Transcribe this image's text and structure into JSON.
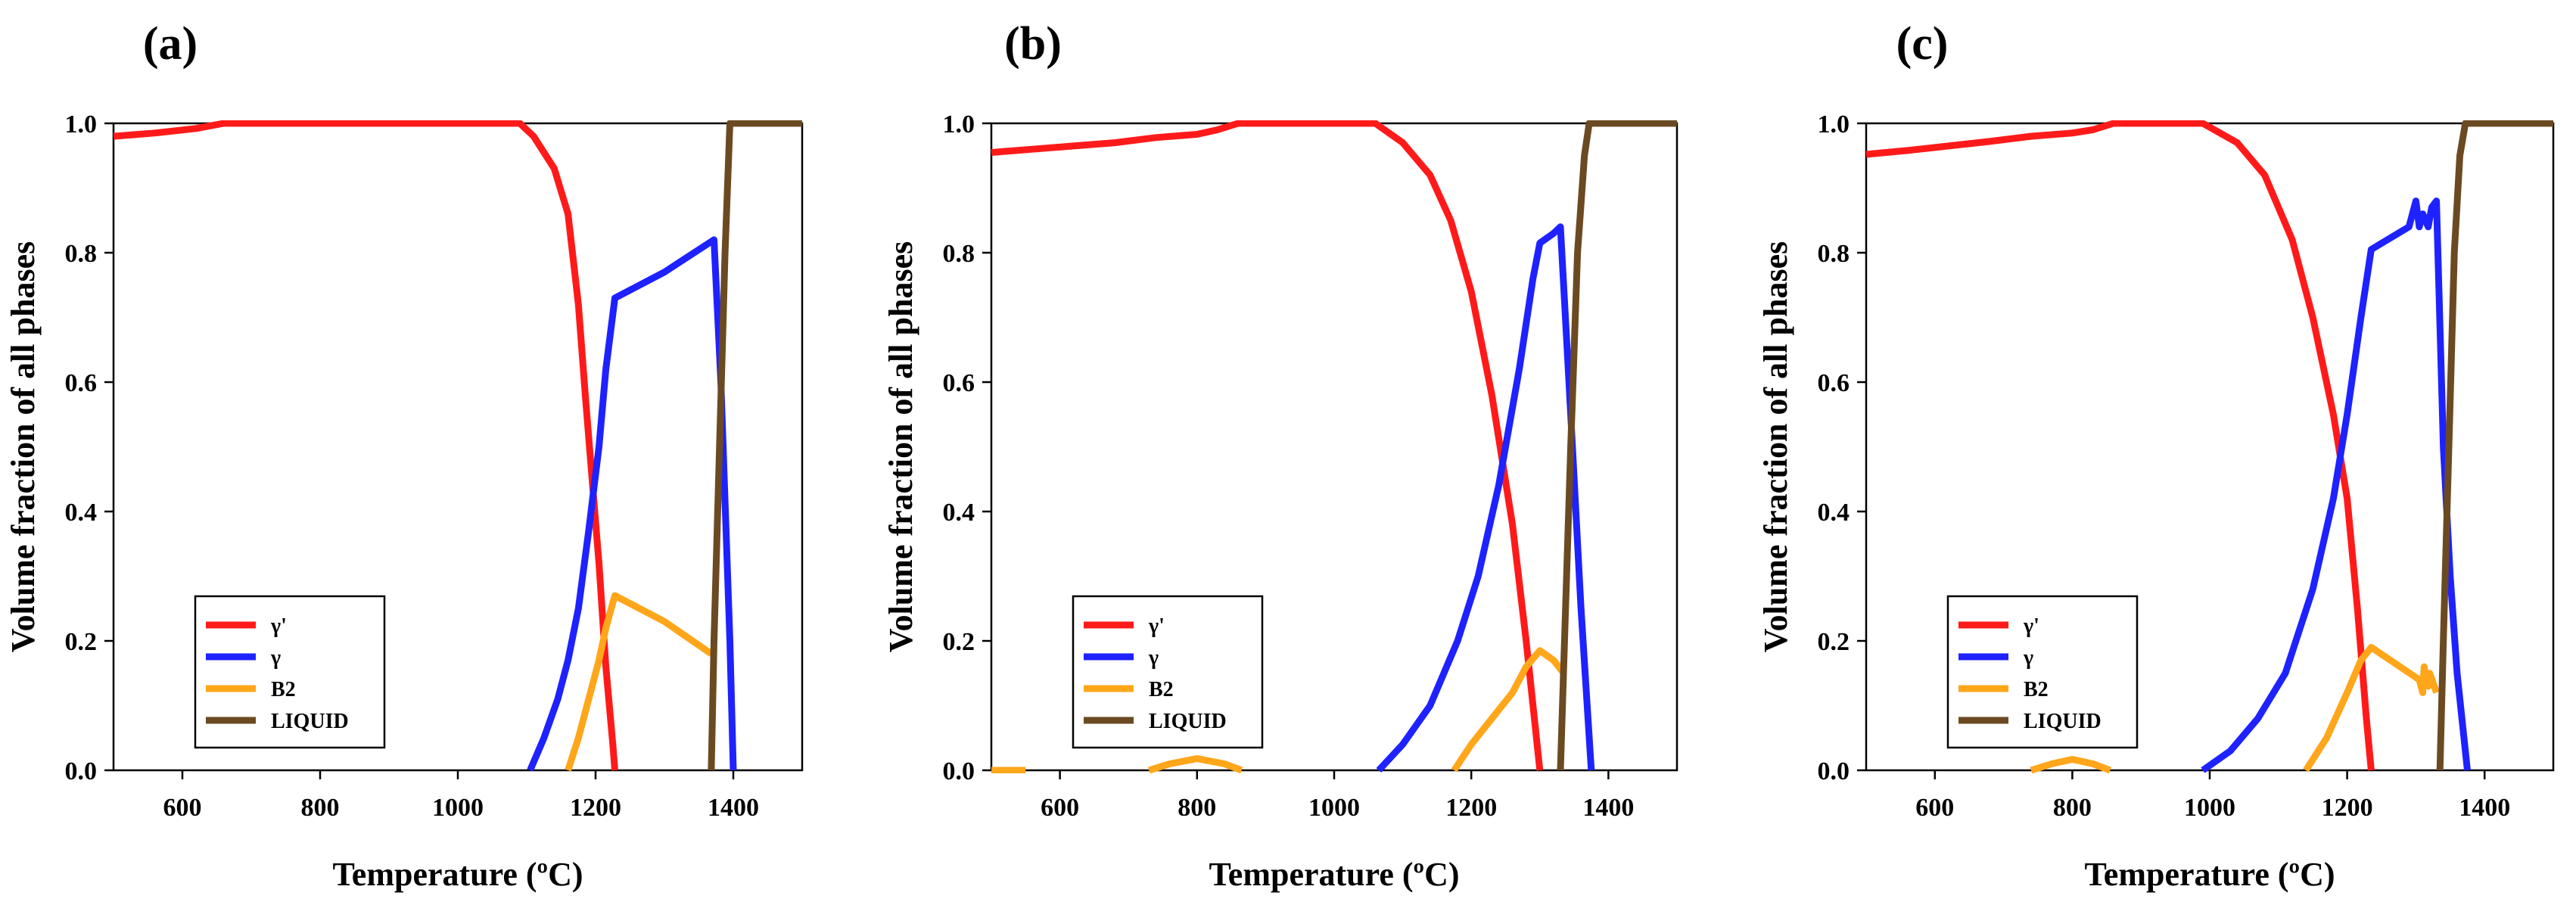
{
  "figure": {
    "panel_labels": [
      "(a)",
      "(b)",
      "(c)"
    ]
  },
  "chart_data": [
    {
      "type": "line",
      "panel": "(a)",
      "xlabel": "Temperature (ºC)",
      "ylabel": "Volume fraction of all phases",
      "xlim": [
        500,
        1500
      ],
      "ylim": [
        0,
        1
      ],
      "xticks": [
        600,
        800,
        1000,
        1200,
        1400
      ],
      "yticks": [
        0.0,
        0.2,
        0.4,
        0.6,
        0.8,
        1.0
      ],
      "xtick_labels": [
        "600",
        "800",
        "1000",
        "1200",
        "1400"
      ],
      "ytick_labels": [
        "0.0",
        "0.2",
        "0.4",
        "0.6",
        "0.8",
        "1.0"
      ],
      "legend_position": "bottom-left",
      "series": [
        {
          "name": "γ'",
          "color": "#ff1a1a",
          "x": [
            500,
            560,
            620,
            660,
            700,
            800,
            900,
            1000,
            1050,
            1090,
            1110,
            1140,
            1160,
            1175,
            1185,
            1195,
            1205,
            1215,
            1225,
            1228
          ],
          "y": [
            0.98,
            0.985,
            0.992,
            1.0,
            1.0,
            1.0,
            1.0,
            1.0,
            1.0,
            1.0,
            0.98,
            0.93,
            0.86,
            0.72,
            0.58,
            0.45,
            0.32,
            0.16,
            0.04,
            0.0
          ]
        },
        {
          "name": "γ",
          "color": "#1e22ff",
          "x": [
            1105,
            1125,
            1145,
            1160,
            1175,
            1190,
            1205,
            1215,
            1228,
            1300,
            1372,
            1382,
            1395,
            1400
          ],
          "y": [
            0.0,
            0.05,
            0.11,
            0.17,
            0.25,
            0.37,
            0.5,
            0.62,
            0.73,
            0.77,
            0.82,
            0.6,
            0.2,
            0.0
          ]
        },
        {
          "name": "B2",
          "color": "#ffa61a",
          "x": [
            1160,
            1175,
            1190,
            1205,
            1215,
            1228,
            1300,
            1368
          ],
          "y": [
            0.0,
            0.05,
            0.11,
            0.17,
            0.22,
            0.27,
            0.23,
            0.18
          ]
        },
        {
          "name": "LIQUID",
          "color": "#6b4a22",
          "x": [
            1368,
            1372,
            1380,
            1388,
            1395,
            1500
          ],
          "y": [
            0.0,
            0.2,
            0.5,
            0.8,
            1.0,
            1.0
          ]
        }
      ]
    },
    {
      "type": "line",
      "panel": "(b)",
      "xlabel": "Temperature (ºC)",
      "ylabel": "Volume fraction of all phases",
      "xlim": [
        500,
        1500
      ],
      "ylim": [
        0,
        1
      ],
      "xticks": [
        600,
        800,
        1000,
        1200,
        1400
      ],
      "yticks": [
        0.0,
        0.2,
        0.4,
        0.6,
        0.8,
        1.0
      ],
      "xtick_labels": [
        "600",
        "800",
        "1000",
        "1200",
        "1400"
      ],
      "ytick_labels": [
        "0.0",
        "0.2",
        "0.4",
        "0.6",
        "0.8",
        "1.0"
      ],
      "legend_position": "bottom-left",
      "series": [
        {
          "name": "γ'",
          "color": "#ff1a1a",
          "x": [
            500,
            560,
            620,
            680,
            740,
            800,
            830,
            860,
            900,
            1000,
            1060,
            1100,
            1140,
            1170,
            1200,
            1230,
            1260,
            1280,
            1300
          ],
          "y": [
            0.955,
            0.96,
            0.965,
            0.97,
            0.978,
            0.983,
            0.99,
            1.0,
            1.0,
            1.0,
            1.0,
            0.97,
            0.92,
            0.85,
            0.74,
            0.58,
            0.38,
            0.2,
            0.0
          ]
        },
        {
          "name": "γ",
          "color": "#1e22ff",
          "x": [
            1065,
            1100,
            1140,
            1180,
            1210,
            1240,
            1270,
            1290,
            1300,
            1320,
            1330,
            1345,
            1360,
            1375
          ],
          "y": [
            0.0,
            0.04,
            0.1,
            0.2,
            0.3,
            0.44,
            0.62,
            0.76,
            0.815,
            0.83,
            0.84,
            0.55,
            0.25,
            0.0
          ]
        },
        {
          "name": "B2",
          "color": "#ffa61a",
          "x": [
            1175,
            1200,
            1230,
            1260,
            1280,
            1300,
            1320,
            1335
          ],
          "y": [
            0.0,
            0.04,
            0.08,
            0.12,
            0.16,
            0.185,
            0.17,
            0.15
          ]
        },
        {
          "name": "B2 (low-T)",
          "color": "#ffa61a",
          "x": [
            500,
            550
          ],
          "y": [
            0.0,
            0.0
          ]
        },
        {
          "name": "B2 (800)",
          "color": "#ffa61a",
          "x": [
            730,
            760,
            800,
            840,
            865
          ],
          "y": [
            0.0,
            0.01,
            0.018,
            0.01,
            0.0
          ]
        },
        {
          "name": "LIQUID",
          "color": "#6b4a22",
          "x": [
            1330,
            1336,
            1345,
            1355,
            1365,
            1372,
            1500
          ],
          "y": [
            0.0,
            0.2,
            0.5,
            0.8,
            0.95,
            1.0,
            1.0
          ]
        }
      ]
    },
    {
      "type": "line",
      "panel": "(c)",
      "xlabel": "Temperature (ºC)",
      "ylabel": "Volume fraction of all phases",
      "xlim": [
        500,
        1500
      ],
      "ylim": [
        0,
        1
      ],
      "xticks": [
        600,
        800,
        1000,
        1200,
        1400
      ],
      "yticks": [
        0.0,
        0.2,
        0.4,
        0.6,
        0.8,
        1.0
      ],
      "xtick_labels": [
        "600",
        "800",
        "1000",
        "1200",
        "1400"
      ],
      "ytick_labels": [
        "0.0",
        "0.2",
        "0.4",
        "0.6",
        "0.8",
        "1.0"
      ],
      "legend_position": "bottom-left",
      "series": [
        {
          "name": "γ'",
          "color": "#ff1a1a",
          "x": [
            500,
            560,
            620,
            680,
            740,
            800,
            830,
            860,
            900,
            990,
            1040,
            1080,
            1120,
            1150,
            1180,
            1200,
            1215,
            1228,
            1235
          ],
          "y": [
            0.952,
            0.958,
            0.965,
            0.972,
            0.98,
            0.985,
            0.99,
            1.0,
            1.0,
            1.0,
            0.97,
            0.92,
            0.82,
            0.7,
            0.55,
            0.42,
            0.25,
            0.08,
            0.0
          ]
        },
        {
          "name": "γ",
          "color": "#1e22ff",
          "x": [
            990,
            1030,
            1070,
            1110,
            1150,
            1180,
            1200,
            1220,
            1235,
            1290,
            1300,
            1305,
            1310,
            1318,
            1323,
            1330,
            1340,
            1350,
            1360,
            1375
          ],
          "y": [
            0.0,
            0.03,
            0.08,
            0.15,
            0.28,
            0.42,
            0.55,
            0.7,
            0.805,
            0.84,
            0.88,
            0.84,
            0.86,
            0.84,
            0.87,
            0.88,
            0.5,
            0.3,
            0.15,
            0.0
          ]
        },
        {
          "name": "B2",
          "color": "#ffa61a",
          "x": [
            1140,
            1170,
            1200,
            1220,
            1235,
            1270,
            1305,
            1310,
            1312,
            1318,
            1320,
            1330
          ],
          "y": [
            0.0,
            0.05,
            0.12,
            0.17,
            0.19,
            0.165,
            0.14,
            0.12,
            0.16,
            0.13,
            0.15,
            0.12
          ]
        },
        {
          "name": "B2 (800)",
          "color": "#ffa61a",
          "x": [
            740,
            770,
            800,
            830,
            855
          ],
          "y": [
            0.0,
            0.01,
            0.017,
            0.01,
            0.0
          ]
        },
        {
          "name": "LIQUID",
          "color": "#6b4a22",
          "x": [
            1335,
            1340,
            1348,
            1356,
            1364,
            1372,
            1500
          ],
          "y": [
            0.0,
            0.2,
            0.5,
            0.8,
            0.95,
            1.0,
            1.0
          ]
        }
      ]
    }
  ]
}
